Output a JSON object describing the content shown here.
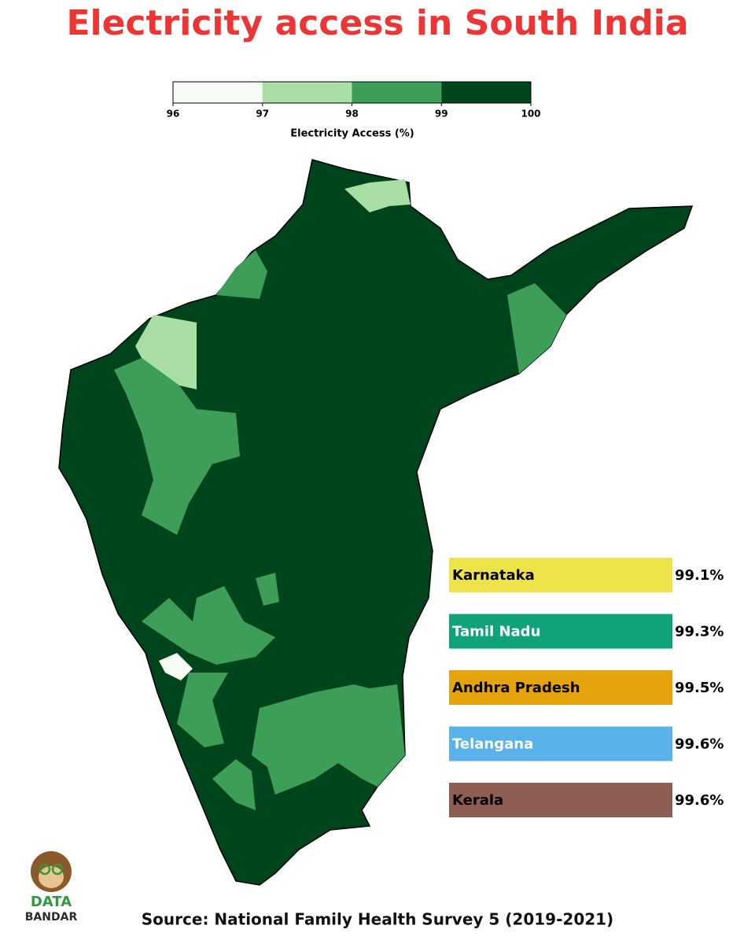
{
  "title": "Electricity access in South India",
  "legend": {
    "label": "Electricity Access (%)",
    "ticks": [
      96,
      97,
      98,
      99,
      100
    ],
    "colors": [
      "#f7fcf5",
      "#a9dea5",
      "#3d9f57",
      "#00441b"
    ]
  },
  "states": [
    {
      "name": "Karnataka",
      "value": 99.1,
      "value_label": "99.1%",
      "color": "#efe34c",
      "text_color": "#000000"
    },
    {
      "name": "Tamil Nadu",
      "value": 99.3,
      "value_label": "99.3%",
      "color": "#10a37a",
      "text_color": "#ffffff"
    },
    {
      "name": "Andhra Pradesh",
      "value": 99.5,
      "value_label": "99.5%",
      "color": "#e5a40e",
      "text_color": "#000000"
    },
    {
      "name": "Telangana",
      "value": 99.6,
      "value_label": "99.6%",
      "color": "#5ab3e8",
      "text_color": "#ffffff"
    },
    {
      "name": "Kerala",
      "value": 99.6,
      "value_label": "99.6%",
      "color": "#8e5e55",
      "text_color": "#000000"
    }
  ],
  "logo": {
    "line1": "DATA",
    "line2": "BANDAR"
  },
  "source": "Source: National Family Health Survey 5 (2019-2021)"
}
